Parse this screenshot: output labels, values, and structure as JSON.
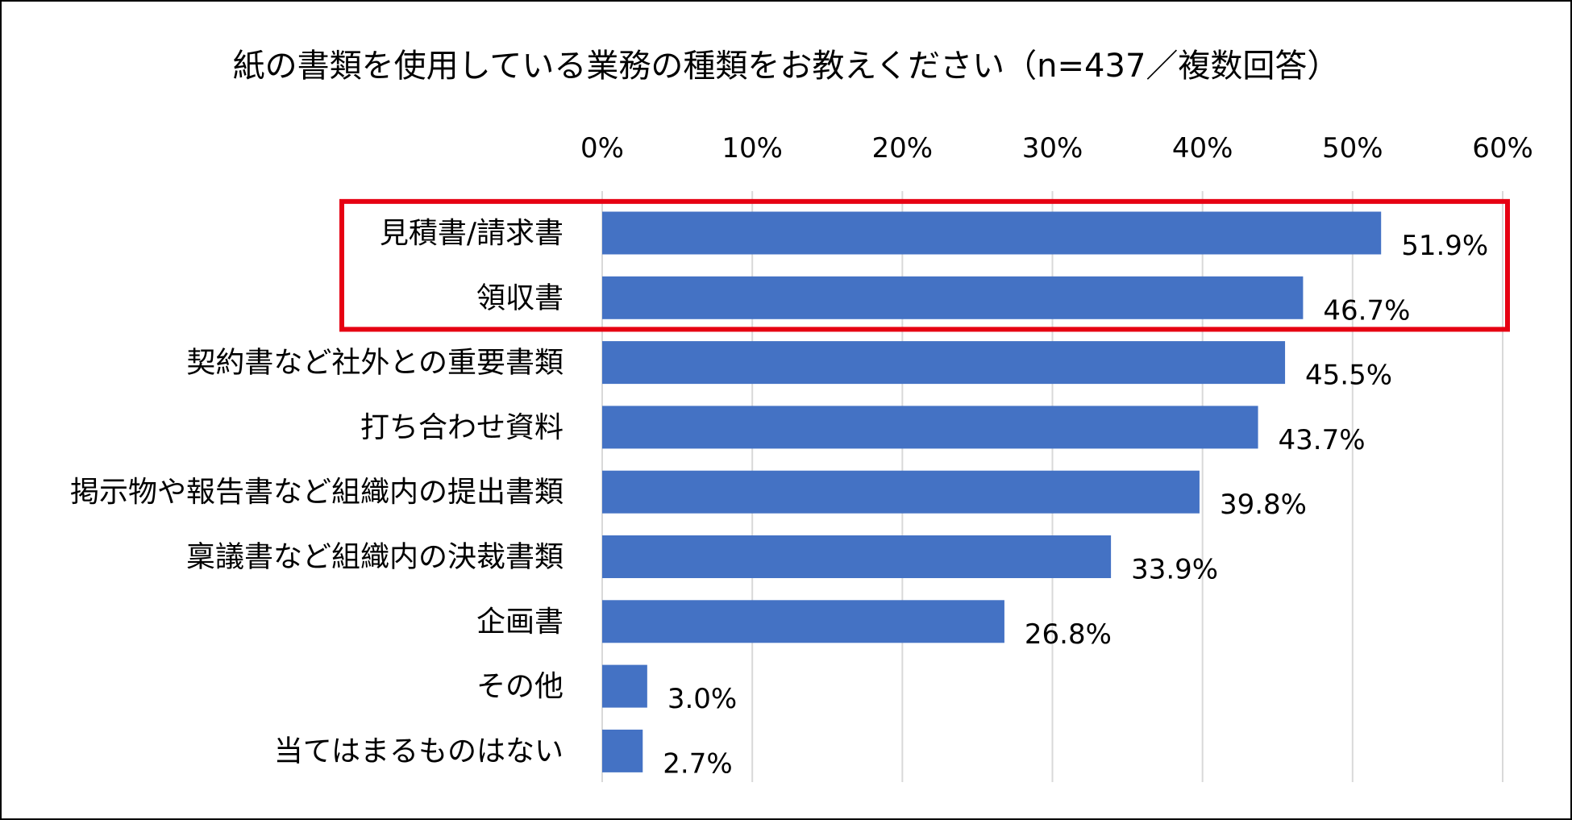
{
  "chart_data": {
    "type": "bar",
    "orientation": "horizontal",
    "title": "紙の書類を使用している業務の種類をお教えください（n=437／複数回答）",
    "categories": [
      "見積書/請求書",
      "領収書",
      "契約書など社外との重要書類",
      "打ち合わせ資料",
      "掲示物や報告書など組織内の提出書類",
      "稟議書など組織内の決裁書類",
      "企画書",
      "その他",
      "当てはまるものはない"
    ],
    "values": [
      51.9,
      46.7,
      45.5,
      43.7,
      39.8,
      33.9,
      26.8,
      3.0,
      2.7
    ],
    "value_labels": [
      "51.9%",
      "46.7%",
      "45.5%",
      "43.7%",
      "39.8%",
      "33.9%",
      "26.8%",
      "3.0%",
      "2.7%"
    ],
    "xlim": [
      0,
      60
    ],
    "x_ticks": [
      0,
      10,
      20,
      30,
      40,
      50,
      60
    ],
    "x_tick_labels": [
      "0%",
      "10%",
      "20%",
      "30%",
      "40%",
      "50%",
      "60%"
    ],
    "x_axis_position": "top",
    "grid": true,
    "legend": "none",
    "highlighted_categories": [
      "見積書/請求書",
      "領収書"
    ],
    "colors": {
      "bar": "#4472C4",
      "grid": "#D9D9D9",
      "highlight_box": "#E60012",
      "text": "#000000",
      "frame": "#000000"
    }
  }
}
